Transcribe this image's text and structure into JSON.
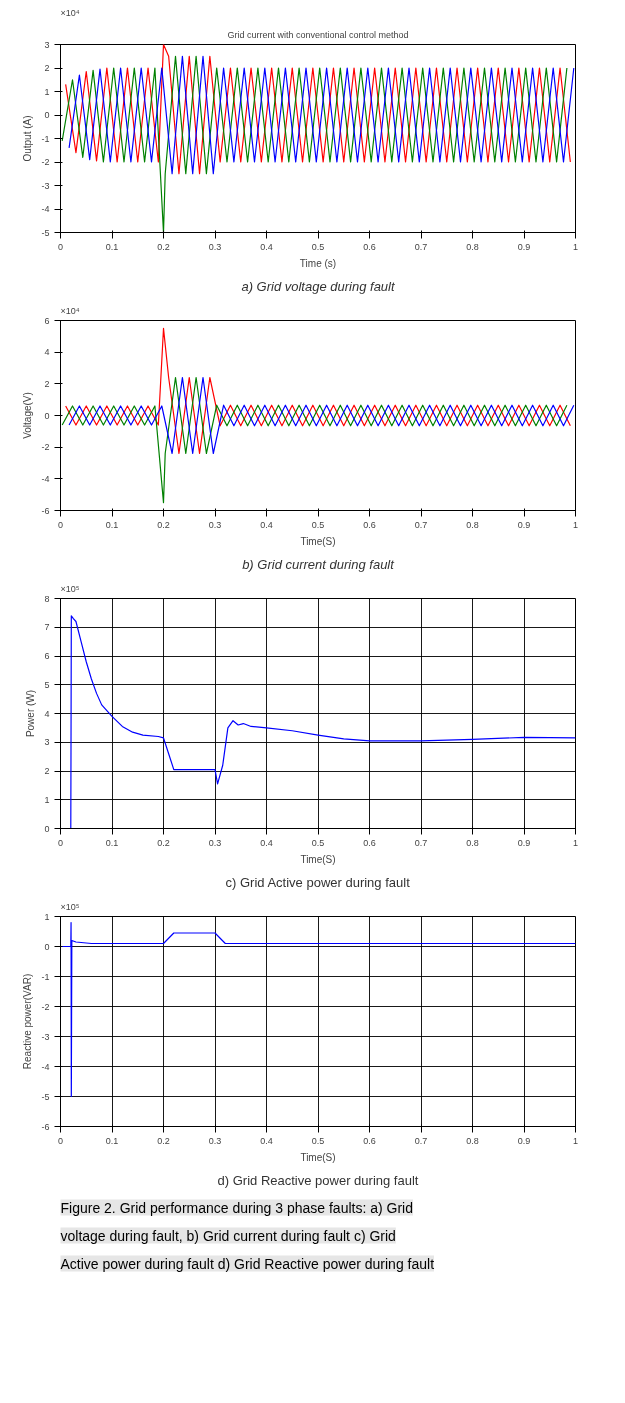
{
  "chart_data": [
    {
      "type": "line",
      "title": "Grid current with conventional control method",
      "xlabel": "Time (s)",
      "ylabel": "Output (A)",
      "xlim": [
        0,
        1
      ],
      "xticks": [
        0,
        0.1,
        0.2,
        0.3,
        0.4,
        0.5,
        0.6,
        0.7,
        0.8,
        0.9,
        1
      ],
      "ylim": [
        -5,
        3
      ],
      "yticks": [
        -5,
        -4,
        -3,
        -2,
        -1,
        0,
        1,
        2,
        3
      ],
      "grid": false,
      "annotations": [
        "×10⁴",
        "a) Grid voltage during fault"
      ],
      "series": [
        {
          "color": "#ff0000",
          "x": [
            0.01,
            0.03,
            0.05,
            0.07,
            0.09,
            0.11,
            0.13,
            0.15,
            0.17,
            0.19,
            0.2,
            0.21,
            0.23,
            0.25,
            0.27,
            0.29,
            0.31,
            0.33,
            0.35,
            0.37,
            0.39,
            0.41,
            0.43,
            0.45,
            0.47,
            0.49,
            0.51,
            0.53,
            0.55,
            0.57,
            0.59,
            0.61,
            0.63,
            0.65,
            0.67,
            0.69,
            0.71,
            0.73,
            0.75,
            0.77,
            0.79,
            0.81,
            0.83,
            0.85,
            0.87,
            0.89,
            0.91,
            0.93,
            0.95,
            0.97,
            0.99
          ],
          "values": [
            1.3,
            -1.6,
            1.85,
            -1.95,
            2,
            -2,
            2,
            -2,
            2,
            -2,
            3,
            2.5,
            -2.5,
            2.5,
            -2.5,
            2.5,
            -2,
            2,
            -2,
            2,
            -2,
            2,
            -2,
            2,
            -2,
            2,
            -2,
            2,
            -2,
            2,
            -2,
            2,
            -2,
            2,
            -2,
            2,
            -2,
            2,
            -2,
            2,
            -2,
            2,
            -2,
            2,
            -2,
            2,
            -2,
            2,
            -2,
            2,
            -2
          ]
        },
        {
          "color": "#008000",
          "x": [
            0.0033,
            0.0233,
            0.0433,
            0.0633,
            0.0833,
            0.1033,
            0.1233,
            0.1433,
            0.1633,
            0.1833,
            0.2,
            0.2033,
            0.2233,
            0.2433,
            0.2633,
            0.2833,
            0.3033,
            0.3233,
            0.3433,
            0.3633,
            0.3833,
            0.4033,
            0.4233,
            0.4433,
            0.4633,
            0.4833,
            0.5033,
            0.5233,
            0.5433,
            0.5633,
            0.5833,
            0.6033,
            0.6233,
            0.6433,
            0.6633,
            0.6833,
            0.7033,
            0.7233,
            0.7433,
            0.7633,
            0.7833,
            0.8033,
            0.8233,
            0.8433,
            0.8633,
            0.8833,
            0.9033,
            0.9233,
            0.9433,
            0.9633,
            0.9833
          ],
          "values": [
            -1.1,
            1.5,
            -1.8,
            1.9,
            -2,
            2,
            -2,
            2,
            -2,
            2,
            -5,
            -2.5,
            2.5,
            -2.5,
            2.5,
            -2.5,
            2,
            -2,
            2,
            -2,
            2,
            -2,
            2,
            -2,
            2,
            -2,
            2,
            -2,
            2,
            -2,
            2,
            -2,
            2,
            -2,
            2,
            -2,
            2,
            -2,
            2,
            -2,
            2,
            -2,
            2,
            -2,
            2,
            -2,
            2,
            -2,
            2,
            -2,
            2
          ]
        },
        {
          "color": "#0000ff",
          "x": [
            0.0167,
            0.0367,
            0.0567,
            0.0767,
            0.0967,
            0.1167,
            0.1367,
            0.1567,
            0.1767,
            0.1967,
            0.2167,
            0.2367,
            0.2567,
            0.2767,
            0.2967,
            0.3167,
            0.3367,
            0.3567,
            0.3767,
            0.3967,
            0.4167,
            0.4367,
            0.4567,
            0.4767,
            0.4967,
            0.5167,
            0.5367,
            0.5567,
            0.5767,
            0.5967,
            0.6167,
            0.6367,
            0.6567,
            0.6767,
            0.6967,
            0.7167,
            0.7367,
            0.7567,
            0.7767,
            0.7967,
            0.8167,
            0.8367,
            0.8567,
            0.8767,
            0.8967,
            0.9167,
            0.9367,
            0.9567,
            0.9767,
            0.9967
          ],
          "values": [
            -1.4,
            1.7,
            -1.9,
            1.95,
            -2,
            2,
            -2,
            2,
            -2,
            2,
            -2.5,
            2.5,
            -2.5,
            2.5,
            -2.5,
            2,
            -2,
            2,
            -2,
            2,
            -2,
            2,
            -2,
            2,
            -2,
            2,
            -2,
            2,
            -2,
            2,
            -2,
            2,
            -2,
            2,
            -2,
            2,
            -2,
            2,
            -2,
            2,
            -2,
            2,
            -2,
            2,
            -2,
            2,
            -2,
            2,
            -2,
            2
          ]
        }
      ]
    },
    {
      "type": "line",
      "xlabel": "Time(S)",
      "ylabel": "Voltage(V)",
      "xlim": [
        0,
        1
      ],
      "xticks": [
        0,
        0.1,
        0.2,
        0.3,
        0.4,
        0.5,
        0.6,
        0.7,
        0.8,
        0.9,
        1
      ],
      "ylim": [
        -6,
        6
      ],
      "yticks": [
        -6,
        -4,
        -2,
        0,
        2,
        4,
        6
      ],
      "grid": false,
      "annotations": [
        "×10⁴",
        "b) Grid current during fault"
      ],
      "series": [
        {
          "color": "#ff0000",
          "x": [
            0.01,
            0.03,
            0.05,
            0.07,
            0.09,
            0.11,
            0.13,
            0.15,
            0.17,
            0.19,
            0.2,
            0.21,
            0.23,
            0.25,
            0.27,
            0.29,
            0.31,
            0.33,
            0.35,
            0.37,
            0.39,
            0.41,
            0.43,
            0.45,
            0.47,
            0.49,
            0.51,
            0.53,
            0.55,
            0.57,
            0.59,
            0.61,
            0.63,
            0.65,
            0.67,
            0.69,
            0.71,
            0.73,
            0.75,
            0.77,
            0.79,
            0.81,
            0.83,
            0.85,
            0.87,
            0.89,
            0.91,
            0.93,
            0.95,
            0.97,
            0.99
          ],
          "values": [
            0.6,
            -0.6,
            0.6,
            -0.6,
            0.6,
            -0.6,
            0.6,
            -0.6,
            0.6,
            -0.6,
            5.5,
            2.4,
            -2.4,
            2.4,
            -2.4,
            2.4,
            -0.65,
            0.65,
            -0.65,
            0.65,
            -0.65,
            0.65,
            -0.65,
            0.65,
            -0.65,
            0.65,
            -0.65,
            0.65,
            -0.65,
            0.65,
            -0.65,
            0.65,
            -0.65,
            0.65,
            -0.65,
            0.65,
            -0.65,
            0.65,
            -0.65,
            0.65,
            -0.65,
            0.65,
            -0.65,
            0.65,
            -0.65,
            0.65,
            -0.65,
            0.65,
            -0.65,
            0.65,
            -0.65
          ]
        },
        {
          "color": "#008000",
          "x": [
            0.0033,
            0.0233,
            0.0433,
            0.0633,
            0.0833,
            0.1033,
            0.1233,
            0.1433,
            0.1633,
            0.1833,
            0.2,
            0.2033,
            0.2233,
            0.2433,
            0.2633,
            0.2833,
            0.3033,
            0.3233,
            0.3433,
            0.3633,
            0.3833,
            0.4033,
            0.4233,
            0.4433,
            0.4633,
            0.4833,
            0.5033,
            0.5233,
            0.5433,
            0.5633,
            0.5833,
            0.6033,
            0.6233,
            0.6433,
            0.6633,
            0.6833,
            0.7033,
            0.7233,
            0.7433,
            0.7633,
            0.7833,
            0.8033,
            0.8233,
            0.8433,
            0.8633,
            0.8833,
            0.9033,
            0.9233,
            0.9433,
            0.9633,
            0.9833
          ],
          "values": [
            -0.6,
            0.6,
            -0.6,
            0.6,
            -0.6,
            0.6,
            -0.6,
            0.6,
            -0.6,
            0.6,
            -5.5,
            -2.4,
            2.4,
            -2.4,
            2.4,
            -2.4,
            0.65,
            -0.65,
            0.65,
            -0.65,
            0.65,
            -0.65,
            0.65,
            -0.65,
            0.65,
            -0.65,
            0.65,
            -0.65,
            0.65,
            -0.65,
            0.65,
            -0.65,
            0.65,
            -0.65,
            0.65,
            -0.65,
            0.65,
            -0.65,
            0.65,
            -0.65,
            0.65,
            -0.65,
            0.65,
            -0.65,
            0.65,
            -0.65,
            0.65,
            -0.65,
            0.65,
            -0.65,
            0.65
          ]
        },
        {
          "color": "#0000ff",
          "x": [
            0.0167,
            0.0367,
            0.0567,
            0.0767,
            0.0967,
            0.1167,
            0.1367,
            0.1567,
            0.1767,
            0.1967,
            0.2167,
            0.2367,
            0.2567,
            0.2767,
            0.2967,
            0.3167,
            0.3367,
            0.3567,
            0.3767,
            0.3967,
            0.4167,
            0.4367,
            0.4567,
            0.4767,
            0.4967,
            0.5167,
            0.5367,
            0.5567,
            0.5767,
            0.5967,
            0.6167,
            0.6367,
            0.6567,
            0.6767,
            0.6967,
            0.7167,
            0.7367,
            0.7567,
            0.7767,
            0.7967,
            0.8167,
            0.8367,
            0.8567,
            0.8767,
            0.8967,
            0.9167,
            0.9367,
            0.9567,
            0.9767,
            0.9967
          ],
          "values": [
            -0.6,
            0.6,
            -0.6,
            0.6,
            -0.6,
            0.6,
            -0.6,
            0.6,
            -0.6,
            0.6,
            -2.4,
            2.4,
            -2.4,
            2.4,
            -2.4,
            0.65,
            -0.65,
            0.65,
            -0.65,
            0.65,
            -0.65,
            0.65,
            -0.65,
            0.65,
            -0.65,
            0.65,
            -0.65,
            0.65,
            -0.65,
            0.65,
            -0.65,
            0.65,
            -0.65,
            0.65,
            -0.65,
            0.65,
            -0.65,
            0.65,
            -0.65,
            0.65,
            -0.65,
            0.65,
            -0.65,
            0.65,
            -0.65,
            0.65,
            -0.65,
            0.65,
            -0.65,
            0.65
          ]
        }
      ]
    },
    {
      "type": "line",
      "xlabel": "Time(S)",
      "ylabel": "Power (W)",
      "xlim": [
        0,
        1
      ],
      "xticks": [
        0,
        0.1,
        0.2,
        0.3,
        0.4,
        0.5,
        0.6,
        0.7,
        0.8,
        0.9,
        1
      ],
      "ylim": [
        0,
        8
      ],
      "yticks": [
        0,
        1,
        2,
        3,
        4,
        5,
        6,
        7,
        8
      ],
      "grid": true,
      "annotations": [
        "×10⁵",
        "c) Grid Active power during fault"
      ],
      "series": [
        {
          "color": "#0000ff",
          "x": [
            0,
            0.02,
            0.021,
            0.025,
            0.03,
            0.04,
            0.05,
            0.06,
            0.07,
            0.08,
            0.1,
            0.12,
            0.14,
            0.16,
            0.19,
            0.2,
            0.21,
            0.22,
            0.25,
            0.3,
            0.305,
            0.315,
            0.325,
            0.335,
            0.345,
            0.355,
            0.37,
            0.4,
            0.45,
            0.5,
            0.55,
            0.6,
            0.7,
            0.8,
            0.9,
            1
          ],
          "values": [
            0,
            0,
            7.4,
            7.3,
            7.2,
            6.5,
            5.8,
            5.2,
            4.7,
            4.3,
            3.9,
            3.55,
            3.35,
            3.25,
            3.2,
            3.15,
            2.6,
            2.05,
            2.05,
            2.05,
            1.55,
            2.2,
            3.5,
            3.75,
            3.6,
            3.65,
            3.55,
            3.5,
            3.4,
            3.25,
            3.12,
            3.05,
            3.05,
            3.1,
            3.17,
            3.15
          ]
        }
      ]
    },
    {
      "type": "line",
      "xlabel": "Time(S)",
      "ylabel": "Reactive power(VAR)",
      "xlim": [
        0,
        1
      ],
      "xticks": [
        0,
        0.1,
        0.2,
        0.3,
        0.4,
        0.5,
        0.6,
        0.7,
        0.8,
        0.9,
        1
      ],
      "ylim": [
        -6,
        1
      ],
      "yticks": [
        -6,
        -5,
        -4,
        -3,
        -2,
        -1,
        0,
        1
      ],
      "grid": true,
      "annotations": [
        "×10⁵",
        "d) Grid Reactive power during fault",
        "Figure 2. Grid performance during 3 phase faults: a) Grid voltage during fault, b) Grid current during fault c) Grid Active power during fault d) Grid Reactive power during fault"
      ],
      "series": [
        {
          "color": "#0000ff",
          "x": [
            0,
            0.02,
            0.0205,
            0.021,
            0.022,
            0.03,
            0.06,
            0.2,
            0.22,
            0.3,
            0.32,
            1
          ],
          "values": [
            0,
            0,
            0.8,
            -5,
            0.2,
            0.15,
            0.1,
            0.1,
            0.45,
            0.45,
            0.1,
            0.1
          ]
        }
      ]
    }
  ]
}
